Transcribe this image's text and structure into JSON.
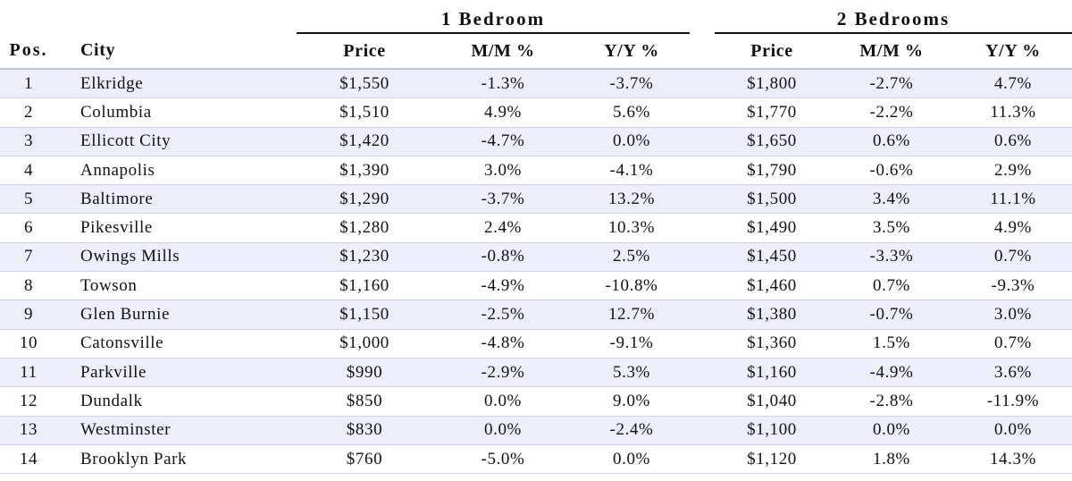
{
  "groups": {
    "one_bedroom": "1 Bedroom",
    "two_bedrooms": "2 Bedrooms"
  },
  "headers": {
    "pos": "Pos.",
    "city": "City",
    "price_1": "Price",
    "mm_1": "M/M %",
    "yy_1": "Y/Y %",
    "price_2": "Price",
    "mm_2": "M/M %",
    "yy_2": "Y/Y %"
  },
  "rows": [
    {
      "pos": "1",
      "city": "Elkridge",
      "p1": "$1,550",
      "mm1": "-1.3%",
      "yy1": "-3.7%",
      "p2": "$1,800",
      "mm2": "-2.7%",
      "yy2": "4.7%"
    },
    {
      "pos": "2",
      "city": "Columbia",
      "p1": "$1,510",
      "mm1": "4.9%",
      "yy1": "5.6%",
      "p2": "$1,770",
      "mm2": "-2.2%",
      "yy2": "11.3%"
    },
    {
      "pos": "3",
      "city": "Ellicott City",
      "p1": "$1,420",
      "mm1": "-4.7%",
      "yy1": "0.0%",
      "p2": "$1,650",
      "mm2": "0.6%",
      "yy2": "0.6%"
    },
    {
      "pos": "4",
      "city": "Annapolis",
      "p1": "$1,390",
      "mm1": "3.0%",
      "yy1": "-4.1%",
      "p2": "$1,790",
      "mm2": "-0.6%",
      "yy2": "2.9%"
    },
    {
      "pos": "5",
      "city": "Baltimore",
      "p1": "$1,290",
      "mm1": "-3.7%",
      "yy1": "13.2%",
      "p2": "$1,500",
      "mm2": "3.4%",
      "yy2": "11.1%"
    },
    {
      "pos": "6",
      "city": "Pikesville",
      "p1": "$1,280",
      "mm1": "2.4%",
      "yy1": "10.3%",
      "p2": "$1,490",
      "mm2": "3.5%",
      "yy2": "4.9%"
    },
    {
      "pos": "7",
      "city": "Owings Mills",
      "p1": "$1,230",
      "mm1": "-0.8%",
      "yy1": "2.5%",
      "p2": "$1,450",
      "mm2": "-3.3%",
      "yy2": "0.7%"
    },
    {
      "pos": "8",
      "city": "Towson",
      "p1": "$1,160",
      "mm1": "-4.9%",
      "yy1": "-10.8%",
      "p2": "$1,460",
      "mm2": "0.7%",
      "yy2": "-9.3%"
    },
    {
      "pos": "9",
      "city": "Glen Burnie",
      "p1": "$1,150",
      "mm1": "-2.5%",
      "yy1": "12.7%",
      "p2": "$1,380",
      "mm2": "-0.7%",
      "yy2": "3.0%"
    },
    {
      "pos": "10",
      "city": "Catonsville",
      "p1": "$1,000",
      "mm1": "-4.8%",
      "yy1": "-9.1%",
      "p2": "$1,360",
      "mm2": "1.5%",
      "yy2": "0.7%"
    },
    {
      "pos": "11",
      "city": "Parkville",
      "p1": "$990",
      "mm1": "-2.9%",
      "yy1": "5.3%",
      "p2": "$1,160",
      "mm2": "-4.9%",
      "yy2": "3.6%"
    },
    {
      "pos": "12",
      "city": "Dundalk",
      "p1": "$850",
      "mm1": "0.0%",
      "yy1": "9.0%",
      "p2": "$1,040",
      "mm2": "-2.8%",
      "yy2": "-11.9%"
    },
    {
      "pos": "13",
      "city": "Westminster",
      "p1": "$830",
      "mm1": "0.0%",
      "yy1": "-2.4%",
      "p2": "$1,100",
      "mm2": "0.0%",
      "yy2": "0.0%"
    },
    {
      "pos": "14",
      "city": "Brooklyn Park",
      "p1": "$760",
      "mm1": "-5.0%",
      "yy1": "0.0%",
      "p2": "$1,120",
      "mm2": "1.8%",
      "yy2": "14.3%"
    }
  ],
  "colors": {
    "row_stripe": "#eeeefa",
    "row_rule": "#c9d2ee",
    "header_rule": "#b8c4e6",
    "group_rule": "#111111"
  }
}
